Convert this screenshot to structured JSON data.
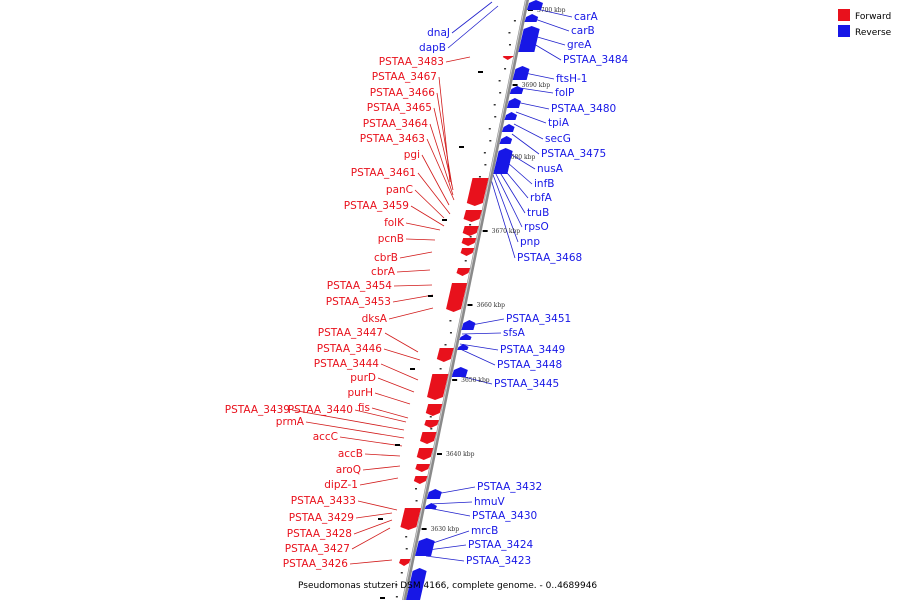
{
  "colors": {
    "forward": "#e8111c",
    "reverse": "#1717e6",
    "axis": "#8a8a8a",
    "leader_forward": "#d11a1a",
    "leader_reverse": "#2020cc"
  },
  "legend": {
    "forward": "Forward",
    "reverse": "Reverse"
  },
  "caption": "Pseudomonas stutzeri DSM 4166, complete genome. - 0..4689946",
  "kbp_marks": [
    "3700 kbp",
    "3690 kbp",
    "3680 kbp",
    "3670 kbp",
    "3660 kbp",
    "3650 kbp",
    "3640 kbp",
    "3630 kbp"
  ],
  "forward_labels": [
    "PSTAA_3483",
    "PSTAA_3467",
    "PSTAA_3466",
    "PSTAA_3465",
    "PSTAA_3464",
    "PSTAA_3463",
    "pgi",
    "PSTAA_3461",
    "panC",
    "PSTAA_3459",
    "folK",
    "pcnB",
    "cbrB",
    "cbrA",
    "PSTAA_3454",
    "PSTAA_3453",
    "dksA",
    "PSTAA_3447",
    "PSTAA_3446",
    "PSTAA_3444",
    "purD",
    "purH",
    "fis",
    "PSTAA_3440",
    "PSTAA_3439",
    "prmA",
    "accC",
    "accB",
    "aroQ",
    "dipZ-1",
    "PSTAA_3433",
    "PSTAA_3429",
    "PSTAA_3428",
    "PSTAA_3427",
    "PSTAA_3426"
  ],
  "reverse_labels": [
    "carA",
    "carB",
    "greA",
    "PSTAA_3484",
    "ftsH-1",
    "folP",
    "PSTAA_3480",
    "tpiA",
    "secG",
    "PSTAA_3475",
    "nusA",
    "infB",
    "rbfA",
    "truB",
    "rpsO",
    "pnp",
    "PSTAA_3468",
    "PSTAA_3451",
    "sfsA",
    "PSTAA_3449",
    "PSTAA_3448",
    "PSTAA_3445",
    "PSTAA_3432",
    "hmuV",
    "PSTAA_3430",
    "mrcB",
    "PSTAA_3424",
    "PSTAA_3423",
    "dnaJ",
    "dapB"
  ]
}
